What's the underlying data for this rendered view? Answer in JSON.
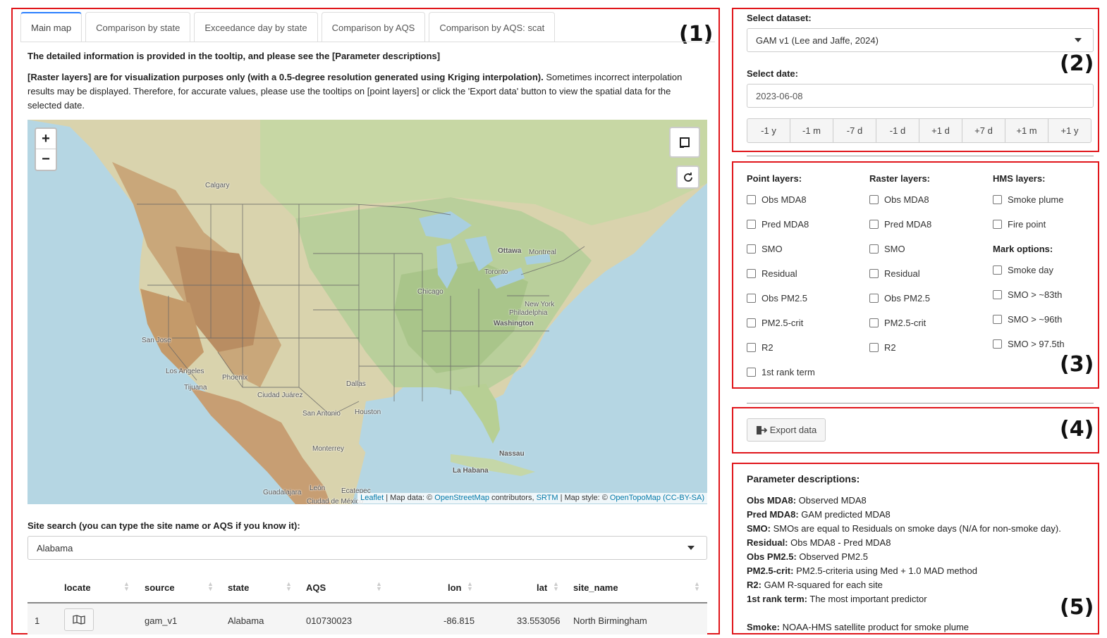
{
  "panel_labels": [
    "(1)",
    "(2)",
    "(3)",
    "(4)",
    "(5)"
  ],
  "tabs": [
    {
      "label": "Main map"
    },
    {
      "label": "Comparison by state"
    },
    {
      "label": "Exceedance day by state"
    },
    {
      "label": "Comparison by AQS"
    },
    {
      "label": "Comparison by AQS: scat"
    }
  ],
  "info": {
    "line1": "The detailed information is provided in the tooltip, and please see the [Parameter descriptions]",
    "bold2": "[Raster layers] are for visualization purposes only (with a 0.5-degree resolution generated using Kriging interpolation).",
    "rest2": " Sometimes incorrect interpolation results may be displayed. Therefore, for accurate values, please use the tooltips on [point layers] or click the 'Export data' button to view the spatial data for the selected date."
  },
  "map": {
    "zoom_in": "+",
    "zoom_out": "−",
    "attribution": {
      "leaflet": "Leaflet",
      "sep1": " | Map data: © ",
      "osm": "OpenStreetMap",
      "mid": " contributors, ",
      "srtm": "SRTM",
      "mid2": " | Map style: © ",
      "otm": "OpenTopoMap",
      "sp": " ",
      "cc": "(CC-BY-SA)"
    },
    "cities": {
      "calgary": "Calgary",
      "ottawa": "Ottawa",
      "montreal": "Montreal",
      "toronto": "Toronto",
      "chicago": "Chicago",
      "newyork": "New York",
      "philadelphia": "Philadelphia",
      "washington": "Washington",
      "sanjose": "San Jose",
      "losangeles": "Los Angeles",
      "tijuana": "Tijuana",
      "phoenix": "Phoenix",
      "ciudadjuarez": "Ciudad Juárez",
      "dallas": "Dallas",
      "houston": "Houston",
      "sanantonio": "San Antonio",
      "monterrey": "Monterrey",
      "nassau": "Nassau",
      "lahabana": "La Habana",
      "guadalajara": "Guadalajara",
      "leon": "León",
      "ecatepec": "Ecatepec",
      "ciudaddemexico": "Ciudad de México"
    }
  },
  "site_search": {
    "label": "Site search (you can type the site name or AQS if you know it):",
    "value": "Alabama"
  },
  "table": {
    "columns": [
      "locate",
      "source",
      "state",
      "AQS",
      "lon",
      "lat",
      "site_name"
    ],
    "rows": [
      {
        "index": "1",
        "source": "gam_v1",
        "state": "Alabama",
        "aqs": "010730023",
        "lon": "-86.815",
        "lat": "33.553056",
        "site_name": "North Birmingham"
      }
    ]
  },
  "dataset": {
    "label": "Select dataset:",
    "value": "GAM v1 (Lee and Jaffe, 2024)"
  },
  "date": {
    "label": "Select date:",
    "value": "2023-06-08"
  },
  "date_buttons": [
    "-1 y",
    "-1 m",
    "-7 d",
    "-1 d",
    "+1 d",
    "+7 d",
    "+1 m",
    "+1 y"
  ],
  "layers": {
    "point_title": "Point layers:",
    "point": [
      "Obs MDA8",
      "Pred MDA8",
      "SMO",
      "Residual",
      "Obs PM2.5",
      "PM2.5-crit",
      "R2",
      "1st rank term"
    ],
    "raster_title": "Raster layers:",
    "raster": [
      "Obs MDA8",
      "Pred MDA8",
      "SMO",
      "Residual",
      "Obs PM2.5",
      "PM2.5-crit",
      "R2"
    ],
    "hms_title": "HMS layers:",
    "hms": [
      "Smoke plume",
      "Fire point"
    ],
    "mark_title": "Mark options:",
    "mark": [
      "Smoke day",
      "SMO > ~83th",
      "SMO > ~96th",
      "SMO > 97.5th"
    ]
  },
  "export_label": "Export data",
  "param_desc": {
    "title": "Parameter descriptions:",
    "items": [
      {
        "term": "Obs MDA8:",
        "desc": " Observed MDA8"
      },
      {
        "term": "Pred MDA8:",
        "desc": " GAM predicted MDA8"
      },
      {
        "term": "SMO:",
        "desc": " SMOs are equal to Residuals on smoke days (N/A for non-smoke day)."
      },
      {
        "term": "Residual:",
        "desc": " Obs MDA8 - Pred MDA8"
      },
      {
        "term": "Obs PM2.5:",
        "desc": " Observed PM2.5"
      },
      {
        "term": "PM2.5-crit:",
        "desc": " PM2.5-criteria using Med + 1.0 MAD method"
      },
      {
        "term": "R2:",
        "desc": " GAM R-squared for each site"
      },
      {
        "term": "1st rank term:",
        "desc": " The most important predictor"
      }
    ],
    "smoke_term": "Smoke:",
    "smoke_desc": " NOAA-HMS satellite product for smoke plume"
  },
  "colors": {
    "annotation_box": "#e0161b",
    "active_tab": "#2a7fff",
    "link": "#0078a8"
  }
}
